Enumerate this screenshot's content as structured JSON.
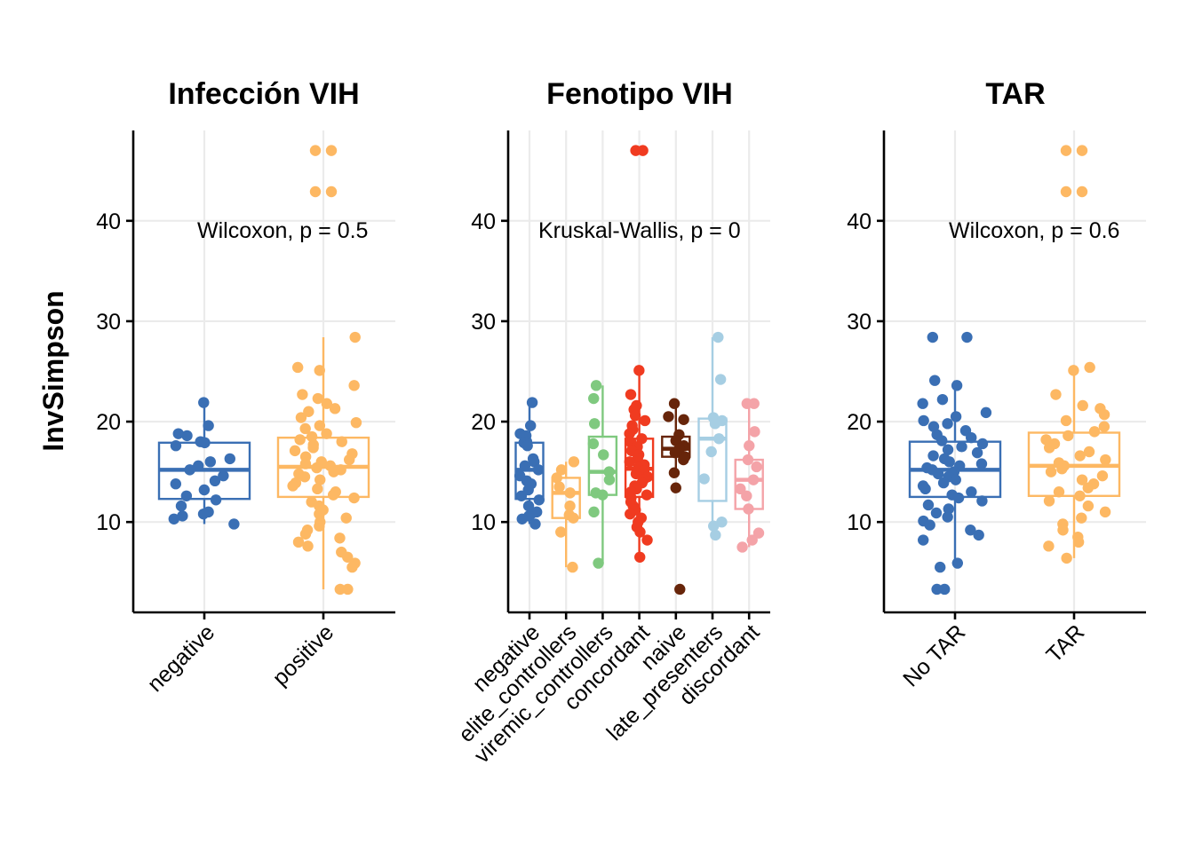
{
  "chart_data": {
    "type": "boxplot",
    "ylabel": "InvSimpson",
    "ylim": [
      1,
      49
    ],
    "yticks": [
      10,
      20,
      30,
      40
    ],
    "grid": true,
    "panels": [
      {
        "title": "Infección VIH",
        "annotation": "Wilcoxon, p = 0.5",
        "groups": [
          {
            "name": "negative",
            "color": "#3a6fb4",
            "q1": 12.3,
            "median": 15.2,
            "q3": 17.9,
            "whisker_low": 9.8,
            "whisker_high": 21.8,
            "points": [
              21.9,
              19.6,
              18.8,
              18.6,
              18.0,
              17.9,
              17.6,
              16.3,
              16.0,
              15.6,
              15.2,
              14.6,
              14.1,
              13.8,
              13.2,
              12.6,
              12.2,
              11.6,
              11.0,
              10.8,
              10.6,
              10.3,
              9.8
            ]
          },
          {
            "name": "positive",
            "color": "#fdb863",
            "q1": 12.5,
            "median": 15.5,
            "q3": 18.4,
            "whisker_low": 3.3,
            "whisker_high": 28.4,
            "outlier_label_points": [
              47,
              47,
              42.9,
              42.9
            ],
            "points": [
              47,
              47,
              42.9,
              42.9,
              28.4,
              25.4,
              25.1,
              23.6,
              22.7,
              22.3,
              21.8,
              21.3,
              21.0,
              20.4,
              19.9,
              19.6,
              19.3,
              18.8,
              18.5,
              18.2,
              18.0,
              17.7,
              17.4,
              17.1,
              16.8,
              16.5,
              16.2,
              16.0,
              15.8,
              15.6,
              15.4,
              15.2,
              15.0,
              14.8,
              14.5,
              14.2,
              13.9,
              13.6,
              13.3,
              13.0,
              12.7,
              12.4,
              12.0,
              11.6,
              11.2,
              10.8,
              10.4,
              10.0,
              9.6,
              9.2,
              8.8,
              8.4,
              8.0,
              7.6,
              7.0,
              6.5,
              5.9,
              5.5,
              3.3,
              3.3
            ]
          }
        ]
      },
      {
        "title": "Fenotipo VIH",
        "annotation": "Kruskal-Wallis, p = 0",
        "groups": [
          {
            "name": "negative",
            "color": "#3a6fb4",
            "q1": 12.3,
            "median": 15.2,
            "q3": 17.9,
            "whisker_low": 9.8,
            "whisker_high": 21.8,
            "points": [
              21.9,
              19.6,
              18.8,
              18.6,
              18.0,
              17.9,
              17.6,
              16.3,
              16.0,
              15.6,
              15.2,
              14.6,
              14.1,
              13.8,
              13.2,
              12.6,
              12.2,
              11.6,
              11.0,
              10.8,
              10.6,
              10.3,
              9.8
            ]
          },
          {
            "name": "elite_controllers",
            "color": "#fdb863",
            "q1": 10.4,
            "median": 12.9,
            "q3": 14.4,
            "whisker_low": 5.5,
            "whisker_high": 16.0,
            "points": [
              16.0,
              15.2,
              14.4,
              13.5,
              12.9,
              11.6,
              10.7,
              10.4,
              9.0,
              5.5
            ]
          },
          {
            "name": "viremic_controllers",
            "color": "#7fc97f",
            "q1": 12.7,
            "median": 15.0,
            "q3": 18.5,
            "whisker_low": 5.9,
            "whisker_high": 23.6,
            "points": [
              23.6,
              22.3,
              19.8,
              17.8,
              16.7,
              15.0,
              14.2,
              12.9,
              12.7,
              11.0,
              5.9
            ]
          },
          {
            "name": "concordant",
            "color": "#f03b20",
            "q1": 12.5,
            "median": 15.3,
            "q3": 18.3,
            "whisker_low": 6.5,
            "whisker_high": 25.1,
            "outlier_label_points": [
              47,
              47
            ],
            "points": [
              47,
              47,
              25.1,
              22.7,
              21.6,
              21.2,
              20.6,
              20.1,
              19.6,
              19.2,
              18.8,
              18.3,
              17.9,
              17.5,
              17.1,
              16.7,
              16.3,
              16.0,
              15.7,
              15.4,
              15.1,
              14.8,
              14.5,
              14.2,
              13.9,
              13.6,
              13.3,
              13.0,
              12.7,
              12.4,
              12.0,
              11.6,
              11.2,
              10.8,
              10.4,
              10.0,
              9.5,
              9.0,
              8.2,
              6.5
            ]
          },
          {
            "name": "naive",
            "color": "#67250a",
            "q1": 16.5,
            "median": 17.3,
            "q3": 18.5,
            "whisker_low": 14.9,
            "whisker_high": 21.8,
            "outliers": [
              3.3
            ],
            "points": [
              21.8,
              20.5,
              20.2,
              18.7,
              18.1,
              17.6,
              17.3,
              16.9,
              16.5,
              16.2,
              14.9,
              13.4,
              3.3
            ]
          },
          {
            "name": "late_presenters",
            "color": "#a6cee3",
            "q1": 12.1,
            "median": 18.3,
            "q3": 20.3,
            "whisker_low": 8.7,
            "whisker_high": 28.4,
            "points": [
              28.4,
              24.2,
              20.4,
              20.1,
              19.8,
              18.3,
              17.0,
              14.3,
              10.0,
              9.6,
              8.7
            ]
          },
          {
            "name": "discordant",
            "color": "#f4a3a8",
            "q1": 11.3,
            "median": 14.2,
            "q3": 16.2,
            "whisker_low": 7.5,
            "whisker_high": 21.8,
            "points": [
              21.8,
              21.8,
              19.0,
              17.6,
              16.2,
              15.5,
              14.2,
              13.3,
              12.6,
              11.3,
              8.9,
              8.2,
              7.5
            ]
          }
        ]
      },
      {
        "title": "TAR",
        "annotation": "Wilcoxon, p = 0.6",
        "groups": [
          {
            "name": "No TAR",
            "color": "#3a6fb4",
            "q1": 12.5,
            "median": 15.2,
            "q3": 18.0,
            "whisker_low": 5.5,
            "whisker_high": 24.1,
            "outliers": [
              28.4,
              28.4
            ],
            "points": [
              28.4,
              28.4,
              24.1,
              23.6,
              22.2,
              21.8,
              20.9,
              20.5,
              20.1,
              19.8,
              19.5,
              19.1,
              18.7,
              18.4,
              18.1,
              17.8,
              17.5,
              17.2,
              16.9,
              16.6,
              16.3,
              16.0,
              15.8,
              15.6,
              15.4,
              15.2,
              15.0,
              14.8,
              14.5,
              14.2,
              13.9,
              13.6,
              13.3,
              13.0,
              12.7,
              12.4,
              12.1,
              11.7,
              11.3,
              10.9,
              10.5,
              10.1,
              9.7,
              9.2,
              8.7,
              8.2,
              5.9,
              5.5,
              3.3,
              3.3
            ]
          },
          {
            "name": "TAR",
            "color": "#fdb863",
            "q1": 12.6,
            "median": 15.6,
            "q3": 18.9,
            "whisker_low": 6.4,
            "whisker_high": 25.4,
            "outlier_label_points": [
              47,
              47,
              42.9,
              42.9
            ],
            "points": [
              47,
              47,
              42.9,
              42.9,
              25.4,
              25.1,
              22.7,
              21.6,
              21.3,
              20.7,
              20.1,
              19.5,
              19.0,
              18.6,
              18.2,
              17.8,
              17.4,
              17.0,
              16.6,
              16.2,
              15.9,
              15.6,
              15.3,
              15.0,
              14.6,
              14.2,
              13.8,
              13.4,
              13.0,
              12.6,
              12.1,
              11.6,
              11.0,
              10.4,
              9.8,
              9.2,
              8.5,
              8.0,
              7.6,
              6.4
            ]
          }
        ]
      }
    ]
  }
}
